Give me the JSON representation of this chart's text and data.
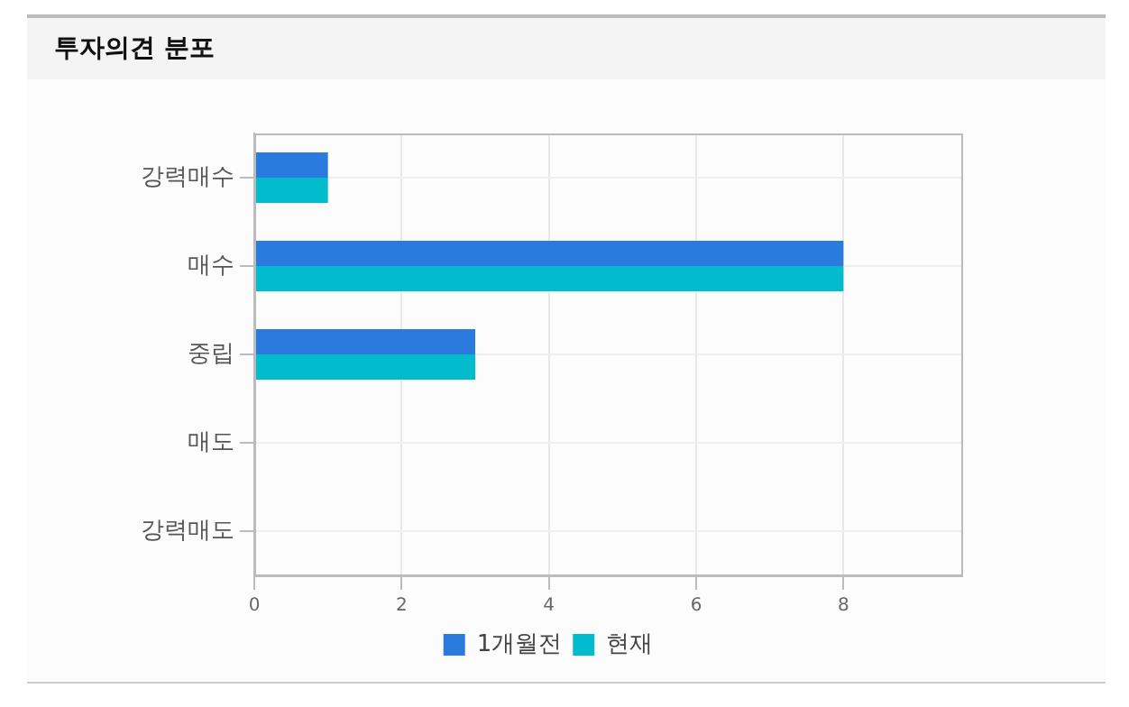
{
  "chart_data": {
    "type": "bar",
    "orientation": "horizontal",
    "title": "투자의견 분포",
    "categories": [
      "강력매수",
      "매수",
      "중립",
      "매도",
      "강력매도"
    ],
    "series": [
      {
        "name": "1개월전",
        "color": "#2b7bde",
        "values": [
          1,
          8,
          3,
          0,
          0
        ]
      },
      {
        "name": "현재",
        "color": "#00bccc",
        "values": [
          1,
          8,
          3,
          0,
          0
        ]
      }
    ],
    "xlim": [
      0,
      9.6
    ],
    "xticks": [
      0,
      2,
      4,
      6,
      8
    ],
    "grid": true,
    "legend": "bottom"
  }
}
